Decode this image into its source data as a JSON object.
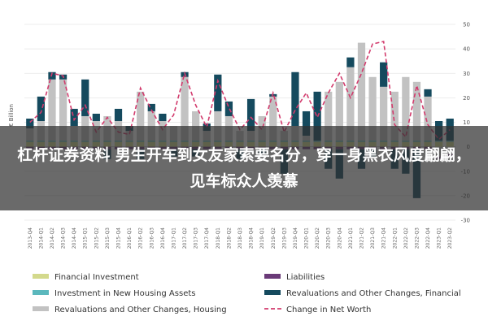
{
  "banner": {
    "text": "杠杆证券资料 男生开车到女友家索要名分，穿一身黑衣风度翩翩，见车标众人羡慕"
  },
  "colors": {
    "financial_investment": "#d3d98c",
    "investment_housing": "#5bb8bd",
    "revaluations_housing": "#c2c2c2",
    "liabilities": "#6a3a78",
    "revaluations_financial": "#154a5e",
    "net_worth": "#d23b6d"
  },
  "chart_data": {
    "type": "bar",
    "ylabel": "€ Billion",
    "ylim": [
      -30,
      50
    ],
    "yticks": [
      50,
      40,
      30,
      20,
      10,
      0,
      -10,
      -20,
      -30
    ],
    "categories": [
      "2013-Q4",
      "2014-Q1",
      "2014-Q2",
      "2014-Q3",
      "2014-Q4",
      "2015-Q1",
      "2015-Q2",
      "2015-Q3",
      "2015-Q4",
      "2016-Q1",
      "2016-Q2",
      "2016-Q3",
      "2016-Q4",
      "2017-Q1",
      "2017-Q2",
      "2017-Q3",
      "2017-Q4",
      "2018-Q1",
      "2018-Q2",
      "2018-Q3",
      "2018-Q4",
      "2019-Q1",
      "2019-Q2",
      "2019-Q3",
      "2019-Q4",
      "2020-Q1",
      "2020-Q2",
      "2020-Q3",
      "2020-Q4",
      "2021-Q1",
      "2021-Q2",
      "2021-Q3",
      "2021-Q4",
      "2022-Q1",
      "2022-Q2",
      "2022-Q3",
      "2022-Q4",
      "2023-Q1",
      "2023-Q2"
    ],
    "series": [
      {
        "name": "Financial Investment",
        "values": [
          2,
          2,
          2,
          2,
          2,
          2,
          2,
          2,
          2,
          2,
          2,
          2,
          2,
          2,
          2,
          2,
          2,
          2,
          2,
          2,
          2,
          2,
          2,
          2,
          2,
          2,
          2,
          2,
          2,
          2,
          2,
          2,
          2,
          2,
          2,
          2,
          2,
          2,
          2
        ]
      },
      {
        "name": "Investment in New Housing Assets",
        "values": [
          0.5,
          0.5,
          0.5,
          0.5,
          0.5,
          0.5,
          0.5,
          0.5,
          0.5,
          0.5,
          0.5,
          0.5,
          0.5,
          0.5,
          0.5,
          0.5,
          0.5,
          0.5,
          0.5,
          0.5,
          0.5,
          0.5,
          0.5,
          0.5,
          0.5,
          0.5,
          0.5,
          0.5,
          0.5,
          0.5,
          0.5,
          0.5,
          0.5,
          0.5,
          0.5,
          0.5,
          0.5,
          0.5,
          0.5
        ]
      },
      {
        "name": "Revaluations and Other Changes, Housing",
        "values": [
          5,
          8,
          25,
          25,
          6,
          10,
          8,
          10,
          8,
          4,
          20,
          12,
          8,
          6,
          26,
          12,
          4,
          12,
          10,
          4,
          4,
          10,
          18,
          4,
          6,
          2,
          0,
          20,
          24,
          30,
          40,
          26,
          22,
          20,
          26,
          24,
          18,
          -4,
          -3
        ]
      },
      {
        "name": "Liabilities",
        "values": [
          -1,
          -1,
          -1,
          -1,
          -1,
          -1,
          -1,
          -1,
          -1,
          -1,
          -1,
          -1,
          -1,
          -1,
          -1,
          -1,
          -1,
          -1,
          -1,
          -1,
          -1,
          -1,
          -1,
          -1,
          -1,
          -1,
          -1,
          -1,
          -1,
          -1,
          -1,
          -1,
          -1,
          -1,
          -1,
          -1,
          -1,
          -1,
          -1
        ]
      },
      {
        "name": "Revaluations and Other Changes, Financial",
        "values": [
          4,
          10,
          3,
          2,
          7,
          15,
          3,
          -4,
          5,
          2,
          -4,
          3,
          3,
          -3,
          2,
          -3,
          3,
          15,
          6,
          -4,
          13,
          -2,
          1,
          -10,
          22,
          10,
          20,
          -8,
          -12,
          4,
          -8,
          -3,
          10,
          -8,
          -10,
          -20,
          3,
          8,
          9
        ]
      },
      {
        "name": "Change in Net Worth",
        "type": "line",
        "values": [
          10,
          14,
          30,
          29,
          11,
          17,
          6,
          12,
          6,
          5,
          24,
          15,
          7,
          13,
          30,
          17,
          8,
          27,
          16,
          7,
          12,
          7,
          22,
          6,
          15,
          22,
          12,
          22,
          30,
          20,
          30,
          42,
          43,
          9,
          4,
          25,
          9,
          3,
          7
        ]
      }
    ],
    "legend": [
      "Financial Investment",
      "Investment in New Housing Assets",
      "Revaluations and Other Changes, Housing",
      "Liabilities",
      "Revaluations and Other Changes, Financial",
      "Change in Net Worth"
    ],
    "grid": true,
    "legend_position": "bottom"
  }
}
